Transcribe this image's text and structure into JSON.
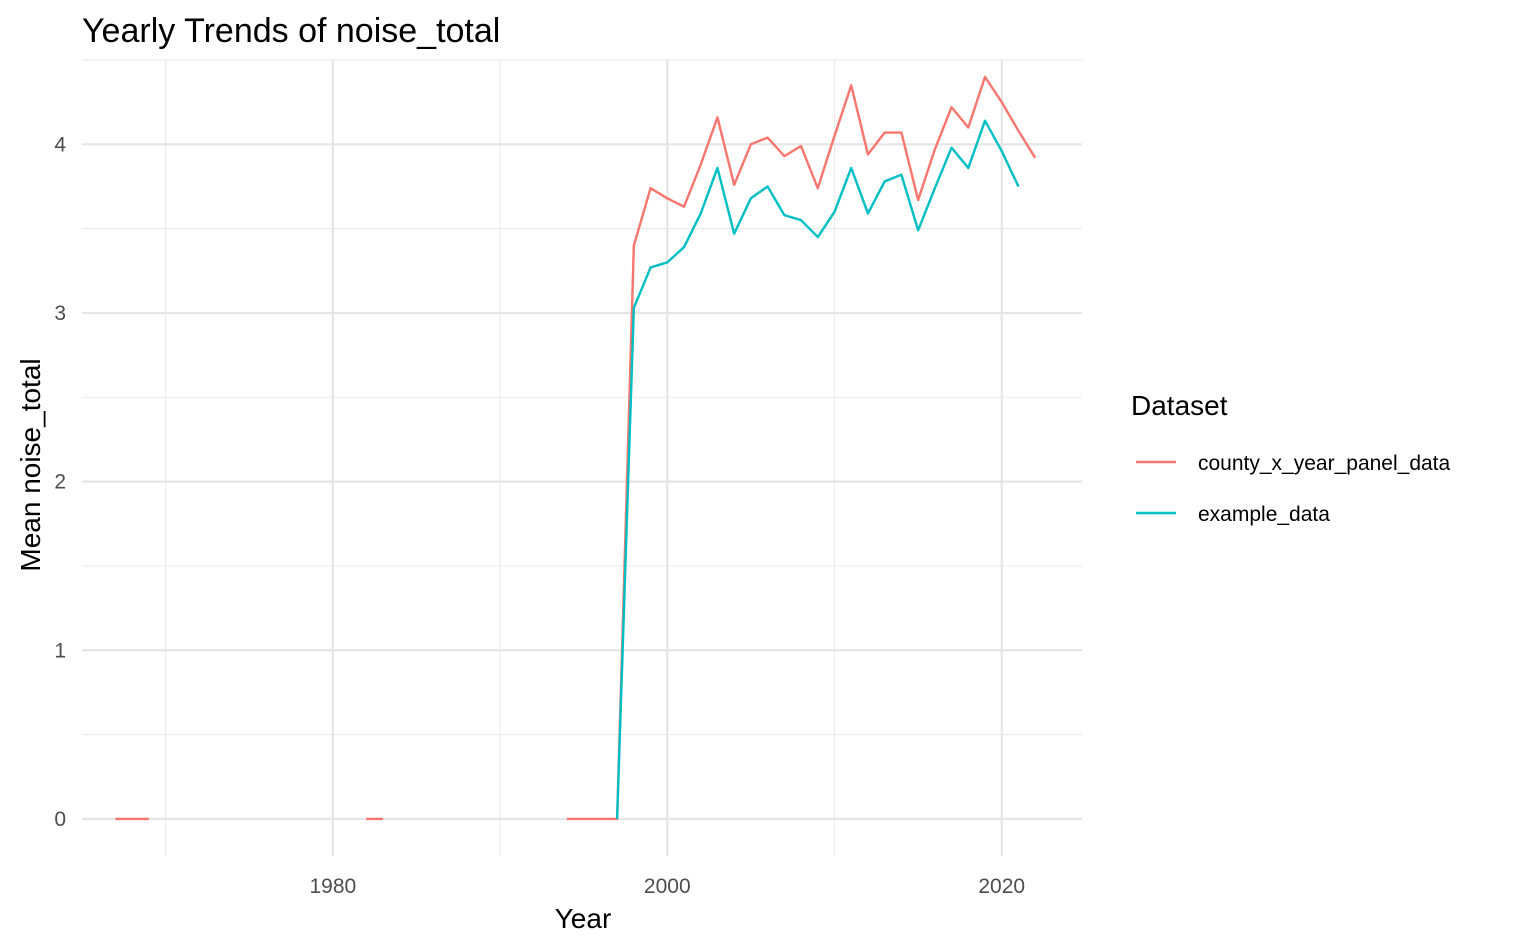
{
  "chart_data": {
    "type": "line",
    "title": "Yearly Trends of noise_total",
    "xlabel": "Year",
    "ylabel": "Mean noise_total",
    "xlim": [
      1965,
      2024.8
    ],
    "ylim": [
      -0.22,
      4.5
    ],
    "x_ticks": [
      1980,
      2000,
      2020
    ],
    "x_minor_ticks": [
      1970,
      1990,
      2010
    ],
    "y_ticks": [
      0,
      1,
      2,
      3,
      4
    ],
    "y_minor_ticks": [
      0.5,
      1.5,
      2.5,
      3.5,
      4.5
    ],
    "grid": true,
    "legend": {
      "title": "Dataset",
      "position": "right"
    },
    "series": [
      {
        "name": "county_x_year_panel_data",
        "color": "#F8766D",
        "segments": [
          [
            [
              1967,
              0
            ],
            [
              1969,
              0
            ]
          ],
          [
            [
              1982,
              0
            ],
            [
              1983,
              0
            ]
          ],
          [
            [
              1994,
              0
            ],
            [
              1995,
              0
            ],
            [
              1996,
              0
            ],
            [
              1997,
              0
            ],
            [
              1998,
              3.4
            ],
            [
              1999,
              3.74
            ],
            [
              2000,
              3.68
            ],
            [
              2001,
              3.63
            ],
            [
              2002,
              3.88
            ],
            [
              2003,
              4.16
            ],
            [
              2004,
              3.76
            ],
            [
              2005,
              4.0
            ],
            [
              2006,
              4.04
            ],
            [
              2007,
              3.93
            ],
            [
              2008,
              3.99
            ],
            [
              2009,
              3.74
            ],
            [
              2010,
              4.05
            ],
            [
              2011,
              4.35
            ],
            [
              2012,
              3.94
            ],
            [
              2013,
              4.07
            ],
            [
              2014,
              4.07
            ],
            [
              2015,
              3.67
            ],
            [
              2016,
              3.97
            ],
            [
              2017,
              4.22
            ],
            [
              2018,
              4.1
            ],
            [
              2019,
              4.4
            ],
            [
              2020,
              4.25
            ],
            [
              2021,
              4.08
            ],
            [
              2022,
              3.92
            ]
          ]
        ]
      },
      {
        "name": "example_data",
        "color": "#00BFC4",
        "segments": [
          [
            [
              1997,
              0
            ],
            [
              1998,
              3.03
            ],
            [
              1999,
              3.27
            ],
            [
              2000,
              3.3
            ],
            [
              2001,
              3.39
            ],
            [
              2002,
              3.59
            ],
            [
              2003,
              3.86
            ],
            [
              2004,
              3.47
            ],
            [
              2005,
              3.68
            ],
            [
              2006,
              3.75
            ],
            [
              2007,
              3.58
            ],
            [
              2008,
              3.55
            ],
            [
              2009,
              3.45
            ],
            [
              2010,
              3.6
            ],
            [
              2011,
              3.86
            ],
            [
              2012,
              3.59
            ],
            [
              2013,
              3.78
            ],
            [
              2014,
              3.82
            ],
            [
              2015,
              3.49
            ],
            [
              2016,
              3.74
            ],
            [
              2017,
              3.98
            ],
            [
              2018,
              3.86
            ],
            [
              2019,
              4.14
            ],
            [
              2020,
              3.96
            ],
            [
              2021,
              3.75
            ]
          ]
        ]
      }
    ]
  }
}
